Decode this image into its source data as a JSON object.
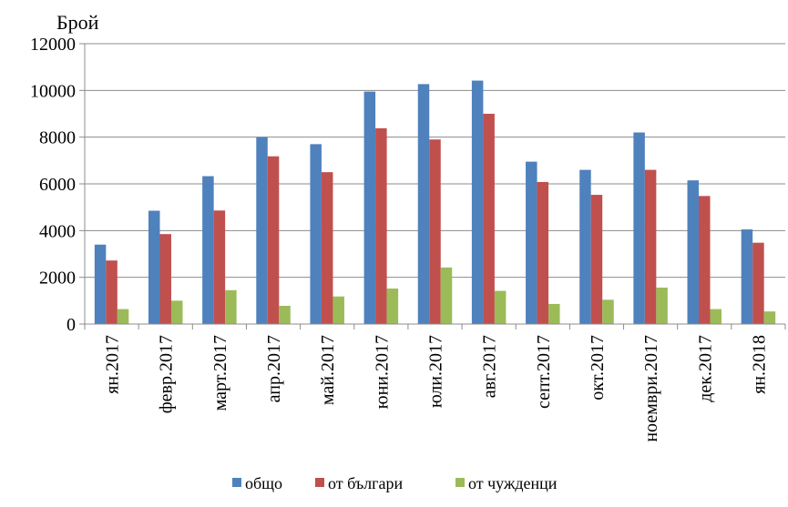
{
  "chart_data": {
    "type": "bar",
    "ylabel": "Брой",
    "xlabel": "",
    "title": "",
    "ylim": [
      0,
      12000
    ],
    "yticks": [
      "0",
      "2000",
      "4000",
      "6000",
      "8000",
      "10000",
      "12000"
    ],
    "grid": true,
    "legend_position": "bottom",
    "categories": [
      "ян.2017",
      "февр.2017",
      "март.2017",
      "апр.2017",
      "май.2017",
      "юни.2017",
      "юли.2017",
      "авг.2017",
      "септ.2017",
      "окт.2017",
      "ноември.2017",
      "дек.2017",
      "ян.2018"
    ],
    "series": [
      {
        "name": "общо",
        "color": "#4F81BD",
        "values": [
          3400,
          4850,
          6330,
          8000,
          7700,
          9950,
          10270,
          10420,
          6950,
          6600,
          8200,
          6150,
          4050
        ]
      },
      {
        "name": "от българи",
        "color": "#C0504D",
        "values": [
          2720,
          3850,
          4860,
          7180,
          6500,
          8380,
          7900,
          9000,
          6080,
          5530,
          6600,
          5480,
          3480
        ]
      },
      {
        "name": "от чужденци",
        "color": "#9BBB59",
        "values": [
          640,
          1000,
          1450,
          780,
          1180,
          1520,
          2420,
          1420,
          860,
          1040,
          1560,
          640,
          540
        ]
      }
    ]
  }
}
